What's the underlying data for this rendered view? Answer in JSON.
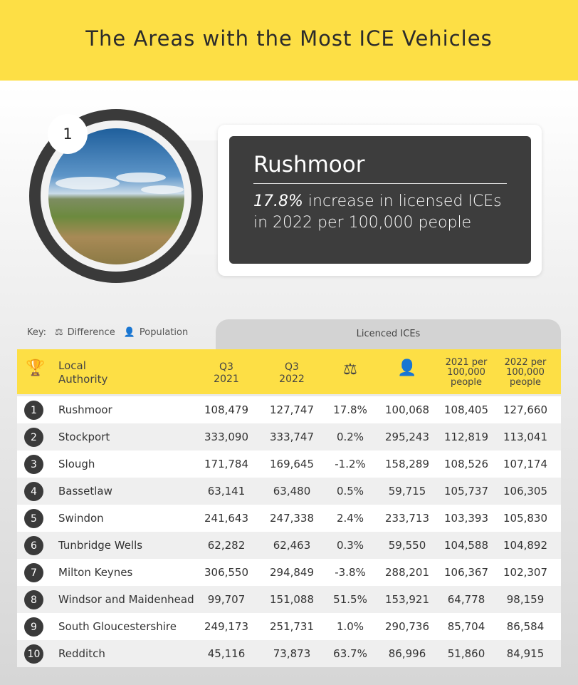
{
  "title": "The Areas with the Most ICE Vehicles",
  "feature": {
    "rank": "1",
    "name": "Rushmoor",
    "highlight": "17.8%",
    "text_line1": "increase in licensed ICEs",
    "text_line2": "in 2022 per 100,000 people",
    "image": "countryside-landscape-photo"
  },
  "key": {
    "label": "Key:",
    "difference": "Difference",
    "population": "Population"
  },
  "table": {
    "group_header": "Licenced ICEs",
    "headers": {
      "local": "Local",
      "authority": "Authority",
      "q3a": "Q3",
      "y2021": "2021",
      "q3b": "Q3",
      "y2022": "2022",
      "per2021": [
        "2021 per",
        "100,000",
        "people"
      ],
      "per2022": [
        "2022 per",
        "100,000",
        "people"
      ]
    },
    "rows": [
      {
        "rank": "1",
        "name": "Rushmoor",
        "q3_2021": "108,479",
        "q3_2022": "127,747",
        "diff": "17.8%",
        "pop": "100,068",
        "per_2021": "108,405",
        "per_2022": "127,660"
      },
      {
        "rank": "2",
        "name": "Stockport",
        "q3_2021": "333,090",
        "q3_2022": "333,747",
        "diff": "0.2%",
        "pop": "295,243",
        "per_2021": "112,819",
        "per_2022": "113,041"
      },
      {
        "rank": "3",
        "name": "Slough",
        "q3_2021": "171,784",
        "q3_2022": "169,645",
        "diff": "-1.2%",
        "pop": "158,289",
        "per_2021": "108,526",
        "per_2022": "107,174"
      },
      {
        "rank": "4",
        "name": "Bassetlaw",
        "q3_2021": "63,141",
        "q3_2022": "63,480",
        "diff": "0.5%",
        "pop": "59,715",
        "per_2021": "105,737",
        "per_2022": "106,305"
      },
      {
        "rank": "5",
        "name": "Swindon",
        "q3_2021": "241,643",
        "q3_2022": "247,338",
        "diff": "2.4%",
        "pop": "233,713",
        "per_2021": "103,393",
        "per_2022": "105,830"
      },
      {
        "rank": "6",
        "name": "Tunbridge Wells",
        "q3_2021": "62,282",
        "q3_2022": "62,463",
        "diff": "0.3%",
        "pop": "59,550",
        "per_2021": "104,588",
        "per_2022": "104,892"
      },
      {
        "rank": "7",
        "name": "Milton Keynes",
        "q3_2021": "306,550",
        "q3_2022": "294,849",
        "diff": "-3.8%",
        "pop": "288,201",
        "per_2021": "106,367",
        "per_2022": "102,307"
      },
      {
        "rank": "8",
        "name": "Windsor and Maidenhead",
        "q3_2021": "99,707",
        "q3_2022": "151,088",
        "diff": "51.5%",
        "pop": "153,921",
        "per_2021": "64,778",
        "per_2022": "98,159"
      },
      {
        "rank": "9",
        "name": "South Gloucestershire",
        "q3_2021": "249,173",
        "q3_2022": "251,731",
        "diff": "1.0%",
        "pop": "290,736",
        "per_2021": "85,704",
        "per_2022": "86,584"
      },
      {
        "rank": "10",
        "name": "Redditch",
        "q3_2021": "45,116",
        "q3_2022": "73,873",
        "diff": "63.7%",
        "pop": "86,996",
        "per_2021": "51,860",
        "per_2022": "84,915"
      }
    ]
  },
  "colors": {
    "accent": "#fddf45",
    "dark": "#3a3a3a"
  }
}
